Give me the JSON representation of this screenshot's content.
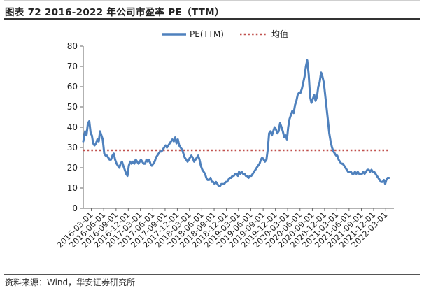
{
  "figure": {
    "title": "图表 72 2016-2022 年公司市盈率 PE（TTM）",
    "source": "资料来源：Wind，华安证券研究所"
  },
  "chart_data": {
    "type": "line",
    "title": "",
    "xlabel": "",
    "ylabel": "",
    "ylim": [
      0,
      80
    ],
    "yticks": [
      0,
      10,
      20,
      30,
      40,
      50,
      60,
      70,
      80
    ],
    "x_range": [
      "2016-01-01",
      "2022-05-01"
    ],
    "x_tick_labels": [
      "2016-03-01",
      "2016-06-01",
      "2016-09-01",
      "2016-12-01",
      "2017-03-01",
      "2017-06-01",
      "2017-09-01",
      "2017-12-01",
      "2018-03-01",
      "2018-06-01",
      "2018-09-01",
      "2018-12-01",
      "2019-03-01",
      "2019-06-01",
      "2019-09-01",
      "2019-12-01",
      "2020-03-01",
      "2020-06-01",
      "2020-09-01",
      "2020-12-01",
      "2021-03-01",
      "2021-06-01",
      "2021-09-01",
      "2021-12-01",
      "2022-03-01"
    ],
    "grid": false,
    "legend_position": "top",
    "series": [
      {
        "name": "PE(TTM)",
        "color": "#4f81bd",
        "style": "solid",
        "points": [
          [
            "2016-01-01",
            33
          ],
          [
            "2016-01-15",
            38
          ],
          [
            "2016-01-25",
            36
          ],
          [
            "2016-02-05",
            42
          ],
          [
            "2016-02-15",
            43
          ],
          [
            "2016-02-25",
            37
          ],
          [
            "2016-03-05",
            36
          ],
          [
            "2016-03-15",
            32
          ],
          [
            "2016-03-25",
            31
          ],
          [
            "2016-04-05",
            32
          ],
          [
            "2016-04-15",
            34
          ],
          [
            "2016-04-25",
            33
          ],
          [
            "2016-05-05",
            38
          ],
          [
            "2016-05-15",
            36
          ],
          [
            "2016-05-25",
            34
          ],
          [
            "2016-06-05",
            27
          ],
          [
            "2016-06-15",
            26
          ],
          [
            "2016-06-25",
            26
          ],
          [
            "2016-07-05",
            25
          ],
          [
            "2016-07-15",
            24
          ],
          [
            "2016-07-25",
            24
          ],
          [
            "2016-08-05",
            26
          ],
          [
            "2016-08-15",
            27
          ],
          [
            "2016-08-25",
            24
          ],
          [
            "2016-09-05",
            22
          ],
          [
            "2016-09-15",
            21
          ],
          [
            "2016-09-25",
            20
          ],
          [
            "2016-10-05",
            22
          ],
          [
            "2016-10-15",
            23
          ],
          [
            "2016-10-25",
            21
          ],
          [
            "2016-11-05",
            19
          ],
          [
            "2016-11-15",
            17
          ],
          [
            "2016-11-25",
            16
          ],
          [
            "2016-12-05",
            21
          ],
          [
            "2016-12-15",
            23
          ],
          [
            "2016-12-25",
            22
          ],
          [
            "2017-01-05",
            23
          ],
          [
            "2017-01-15",
            22
          ],
          [
            "2017-01-25",
            24
          ],
          [
            "2017-02-05",
            23
          ],
          [
            "2017-02-15",
            22
          ],
          [
            "2017-02-25",
            23
          ],
          [
            "2017-03-05",
            24
          ],
          [
            "2017-03-15",
            23
          ],
          [
            "2017-03-25",
            22
          ],
          [
            "2017-04-05",
            22
          ],
          [
            "2017-04-15",
            24
          ],
          [
            "2017-04-25",
            23
          ],
          [
            "2017-05-05",
            24
          ],
          [
            "2017-05-15",
            22
          ],
          [
            "2017-05-25",
            21
          ],
          [
            "2017-06-05",
            22
          ],
          [
            "2017-06-15",
            23
          ],
          [
            "2017-06-25",
            25
          ],
          [
            "2017-07-05",
            26
          ],
          [
            "2017-07-15",
            27
          ],
          [
            "2017-07-25",
            28
          ],
          [
            "2017-08-05",
            28
          ],
          [
            "2017-08-15",
            29
          ],
          [
            "2017-08-25",
            30
          ],
          [
            "2017-09-05",
            31
          ],
          [
            "2017-09-15",
            30
          ],
          [
            "2017-09-25",
            31
          ],
          [
            "2017-10-05",
            32
          ],
          [
            "2017-10-15",
            33
          ],
          [
            "2017-10-25",
            34
          ],
          [
            "2017-11-05",
            33
          ],
          [
            "2017-11-15",
            35
          ],
          [
            "2017-11-25",
            32
          ],
          [
            "2017-12-05",
            34
          ],
          [
            "2017-12-15",
            31
          ],
          [
            "2017-12-25",
            30
          ],
          [
            "2018-01-05",
            29
          ],
          [
            "2018-01-15",
            27
          ],
          [
            "2018-01-25",
            25
          ],
          [
            "2018-02-05",
            24
          ],
          [
            "2018-02-15",
            23
          ],
          [
            "2018-02-25",
            24
          ],
          [
            "2018-03-05",
            25
          ],
          [
            "2018-03-15",
            26
          ],
          [
            "2018-03-25",
            25
          ],
          [
            "2018-04-05",
            23
          ],
          [
            "2018-04-15",
            24
          ],
          [
            "2018-04-25",
            25
          ],
          [
            "2018-05-05",
            26
          ],
          [
            "2018-05-15",
            24
          ],
          [
            "2018-05-25",
            21
          ],
          [
            "2018-06-05",
            19
          ],
          [
            "2018-06-15",
            18
          ],
          [
            "2018-06-25",
            17
          ],
          [
            "2018-07-05",
            15
          ],
          [
            "2018-07-15",
            14
          ],
          [
            "2018-07-25",
            14
          ],
          [
            "2018-08-05",
            15
          ],
          [
            "2018-08-15",
            13
          ],
          [
            "2018-08-25",
            13
          ],
          [
            "2018-09-05",
            12
          ],
          [
            "2018-09-15",
            13
          ],
          [
            "2018-09-25",
            12
          ],
          [
            "2018-10-05",
            11
          ],
          [
            "2018-10-15",
            11
          ],
          [
            "2018-10-25",
            12
          ],
          [
            "2018-11-05",
            12
          ],
          [
            "2018-11-15",
            12
          ],
          [
            "2018-11-25",
            13
          ],
          [
            "2018-12-05",
            13
          ],
          [
            "2018-12-15",
            14
          ],
          [
            "2018-12-25",
            15
          ],
          [
            "2019-01-05",
            15
          ],
          [
            "2019-01-15",
            16
          ],
          [
            "2019-01-25",
            16
          ],
          [
            "2019-02-05",
            17
          ],
          [
            "2019-02-15",
            17
          ],
          [
            "2019-02-25",
            16
          ],
          [
            "2019-03-05",
            18
          ],
          [
            "2019-03-15",
            17
          ],
          [
            "2019-03-25",
            18
          ],
          [
            "2019-04-05",
            17
          ],
          [
            "2019-04-15",
            17
          ],
          [
            "2019-04-25",
            16
          ],
          [
            "2019-05-05",
            16
          ],
          [
            "2019-05-15",
            15
          ],
          [
            "2019-05-25",
            16
          ],
          [
            "2019-06-05",
            16
          ],
          [
            "2019-06-15",
            17
          ],
          [
            "2019-06-25",
            18
          ],
          [
            "2019-07-05",
            19
          ],
          [
            "2019-07-15",
            20
          ],
          [
            "2019-07-25",
            21
          ],
          [
            "2019-08-05",
            22
          ],
          [
            "2019-08-15",
            24
          ],
          [
            "2019-08-25",
            25
          ],
          [
            "2019-09-05",
            24
          ],
          [
            "2019-09-15",
            23
          ],
          [
            "2019-09-25",
            24
          ],
          [
            "2019-10-05",
            29
          ],
          [
            "2019-10-15",
            37
          ],
          [
            "2019-10-25",
            38
          ],
          [
            "2019-11-05",
            36
          ],
          [
            "2019-11-15",
            38
          ],
          [
            "2019-11-25",
            40
          ],
          [
            "2019-12-05",
            39
          ],
          [
            "2019-12-15",
            37
          ],
          [
            "2019-12-25",
            38
          ],
          [
            "2020-01-05",
            42
          ],
          [
            "2020-01-15",
            40
          ],
          [
            "2020-01-25",
            38
          ],
          [
            "2020-02-05",
            35
          ],
          [
            "2020-02-15",
            36
          ],
          [
            "2020-02-25",
            34
          ],
          [
            "2020-03-05",
            40
          ],
          [
            "2020-03-15",
            44
          ],
          [
            "2020-03-25",
            46
          ],
          [
            "2020-04-05",
            48
          ],
          [
            "2020-04-15",
            47
          ],
          [
            "2020-04-25",
            51
          ],
          [
            "2020-05-05",
            53
          ],
          [
            "2020-05-15",
            56
          ],
          [
            "2020-05-25",
            57
          ],
          [
            "2020-06-05",
            57
          ],
          [
            "2020-06-15",
            59
          ],
          [
            "2020-06-25",
            62
          ],
          [
            "2020-07-05",
            65
          ],
          [
            "2020-07-15",
            70
          ],
          [
            "2020-07-25",
            73
          ],
          [
            "2020-08-05",
            66
          ],
          [
            "2020-08-15",
            55
          ],
          [
            "2020-08-25",
            52
          ],
          [
            "2020-09-05",
            54
          ],
          [
            "2020-09-15",
            56
          ],
          [
            "2020-09-25",
            53
          ],
          [
            "2020-10-05",
            55
          ],
          [
            "2020-10-15",
            60
          ],
          [
            "2020-10-25",
            62
          ],
          [
            "2020-11-05",
            67
          ],
          [
            "2020-11-15",
            65
          ],
          [
            "2020-11-25",
            62
          ],
          [
            "2020-12-05",
            56
          ],
          [
            "2020-12-15",
            50
          ],
          [
            "2020-12-25",
            44
          ],
          [
            "2021-01-05",
            37
          ],
          [
            "2021-01-15",
            33
          ],
          [
            "2021-01-25",
            30
          ],
          [
            "2021-02-05",
            28
          ],
          [
            "2021-02-15",
            27
          ],
          [
            "2021-02-25",
            26
          ],
          [
            "2021-03-05",
            26
          ],
          [
            "2021-03-15",
            24
          ],
          [
            "2021-03-25",
            23
          ],
          [
            "2021-04-05",
            22
          ],
          [
            "2021-04-15",
            22
          ],
          [
            "2021-04-25",
            21
          ],
          [
            "2021-05-05",
            20
          ],
          [
            "2021-05-15",
            19
          ],
          [
            "2021-05-25",
            18
          ],
          [
            "2021-06-05",
            18
          ],
          [
            "2021-06-15",
            18
          ],
          [
            "2021-06-25",
            17
          ],
          [
            "2021-07-05",
            17
          ],
          [
            "2021-07-15",
            18
          ],
          [
            "2021-07-25",
            17
          ],
          [
            "2021-08-05",
            18
          ],
          [
            "2021-08-15",
            17
          ],
          [
            "2021-08-25",
            17
          ],
          [
            "2021-09-05",
            17
          ],
          [
            "2021-09-15",
            18
          ],
          [
            "2021-09-25",
            17
          ],
          [
            "2021-10-05",
            18
          ],
          [
            "2021-10-15",
            19
          ],
          [
            "2021-10-25",
            19
          ],
          [
            "2021-11-05",
            18
          ],
          [
            "2021-11-15",
            19
          ],
          [
            "2021-11-25",
            18
          ],
          [
            "2021-12-05",
            18
          ],
          [
            "2021-12-15",
            17
          ],
          [
            "2021-12-25",
            16
          ],
          [
            "2022-01-05",
            15
          ],
          [
            "2022-01-15",
            14
          ],
          [
            "2022-01-25",
            13
          ],
          [
            "2022-02-05",
            13
          ],
          [
            "2022-02-15",
            14
          ],
          [
            "2022-02-25",
            12
          ],
          [
            "2022-03-05",
            14
          ],
          [
            "2022-03-15",
            15
          ],
          [
            "2022-03-25",
            15
          ]
        ]
      },
      {
        "name": "均值",
        "color": "#c0504d",
        "style": "dotted",
        "points": [
          [
            "2016-01-01",
            28.6
          ],
          [
            "2022-03-25",
            28.6
          ]
        ]
      }
    ]
  }
}
